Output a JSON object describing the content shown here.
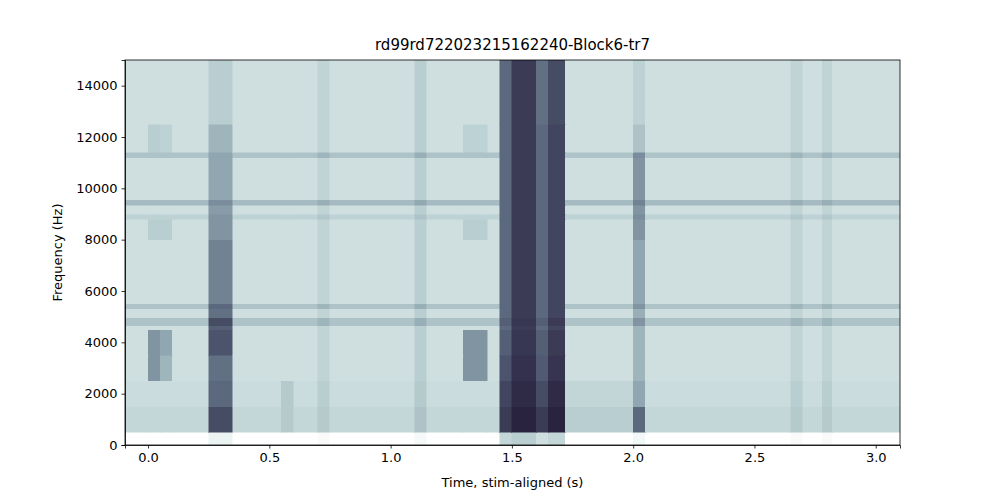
{
  "chart_data": {
    "type": "heatmap",
    "title": "rd99rd722023215162240-Block6-tr7",
    "x_label": "Time, stim-aligned (s)",
    "y_label": "Frequency (Hz)",
    "xlim": [
      -0.095,
      3.1
    ],
    "ylim": [
      0,
      15000
    ],
    "xticks": [
      {
        "value": 0,
        "label": "0.0"
      },
      0.5,
      {
        "value": 1,
        "label": "1.0"
      },
      1.5,
      {
        "value": 2,
        "label": "2.0"
      },
      2.5,
      {
        "value": 3,
        "label": "3.0"
      }
    ],
    "yticks": [
      0,
      2000,
      4000,
      6000,
      8000,
      10000,
      12000,
      14000
    ],
    "x_edges": [
      -0.095,
      0.0,
      0.05,
      0.1,
      0.25,
      0.35,
      0.55,
      0.6,
      0.7,
      0.75,
      1.1,
      1.15,
      1.3,
      1.4,
      1.45,
      1.5,
      1.6,
      1.65,
      1.72,
      2.0,
      2.05,
      2.65,
      2.7,
      2.78,
      2.82,
      3.1
    ],
    "y_edges": [
      0,
      500,
      1500,
      2500,
      3500,
      4500,
      4650,
      4950,
      5300,
      5500,
      8000,
      8800,
      9000,
      9350,
      9550,
      11200,
      11400,
      12500,
      15000
    ],
    "cells": [
      [
        0.05,
        0.05,
        0.05,
        0.05,
        0.15,
        0.05,
        0.05,
        0.05,
        0.08,
        0.05,
        0.1,
        0.05,
        0.05,
        0.05,
        0.35,
        0.4,
        0.3,
        0.35,
        0.05,
        0.12,
        0.05,
        0.08,
        0.05,
        0.08,
        0.05
      ],
      [
        0.35,
        0.35,
        0.35,
        0.35,
        0.8,
        0.35,
        0.42,
        0.35,
        0.42,
        0.35,
        0.45,
        0.35,
        0.35,
        0.35,
        0.85,
        0.92,
        0.85,
        0.92,
        0.4,
        0.72,
        0.35,
        0.42,
        0.35,
        0.42,
        0.35
      ],
      [
        0.32,
        0.32,
        0.32,
        0.32,
        0.72,
        0.32,
        0.42,
        0.32,
        0.4,
        0.32,
        0.42,
        0.32,
        0.32,
        0.32,
        0.82,
        0.9,
        0.8,
        0.9,
        0.36,
        0.55,
        0.32,
        0.4,
        0.32,
        0.4,
        0.32
      ],
      [
        0.3,
        0.6,
        0.5,
        0.3,
        0.7,
        0.3,
        0.3,
        0.3,
        0.37,
        0.3,
        0.4,
        0.3,
        0.6,
        0.3,
        0.78,
        0.88,
        0.76,
        0.87,
        0.3,
        0.5,
        0.3,
        0.37,
        0.3,
        0.37,
        0.3
      ],
      [
        0.3,
        0.6,
        0.55,
        0.3,
        0.78,
        0.3,
        0.3,
        0.3,
        0.37,
        0.3,
        0.4,
        0.3,
        0.6,
        0.3,
        0.75,
        0.86,
        0.75,
        0.85,
        0.3,
        0.5,
        0.3,
        0.37,
        0.3,
        0.37,
        0.3
      ],
      [
        0.3,
        0.3,
        0.3,
        0.3,
        0.75,
        0.3,
        0.3,
        0.3,
        0.37,
        0.3,
        0.4,
        0.3,
        0.3,
        0.3,
        0.72,
        0.85,
        0.72,
        0.82,
        0.3,
        0.5,
        0.3,
        0.37,
        0.3,
        0.37,
        0.3
      ],
      [
        0.45,
        0.45,
        0.45,
        0.45,
        0.8,
        0.45,
        0.45,
        0.45,
        0.5,
        0.45,
        0.52,
        0.45,
        0.45,
        0.45,
        0.75,
        0.86,
        0.75,
        0.85,
        0.45,
        0.6,
        0.45,
        0.5,
        0.45,
        0.5,
        0.45
      ],
      [
        0.3,
        0.3,
        0.3,
        0.3,
        0.7,
        0.3,
        0.3,
        0.3,
        0.37,
        0.3,
        0.4,
        0.3,
        0.3,
        0.3,
        0.72,
        0.85,
        0.72,
        0.82,
        0.3,
        0.52,
        0.3,
        0.37,
        0.3,
        0.37,
        0.3
      ],
      [
        0.45,
        0.45,
        0.45,
        0.45,
        0.72,
        0.45,
        0.45,
        0.45,
        0.5,
        0.45,
        0.52,
        0.45,
        0.45,
        0.45,
        0.72,
        0.85,
        0.72,
        0.82,
        0.45,
        0.6,
        0.45,
        0.5,
        0.45,
        0.5,
        0.45
      ],
      [
        0.3,
        0.3,
        0.3,
        0.3,
        0.65,
        0.3,
        0.3,
        0.3,
        0.37,
        0.3,
        0.4,
        0.3,
        0.3,
        0.3,
        0.72,
        0.85,
        0.72,
        0.82,
        0.3,
        0.55,
        0.3,
        0.37,
        0.3,
        0.37,
        0.3
      ],
      [
        0.3,
        0.4,
        0.4,
        0.3,
        0.6,
        0.3,
        0.3,
        0.3,
        0.37,
        0.3,
        0.4,
        0.3,
        0.4,
        0.3,
        0.72,
        0.85,
        0.72,
        0.82,
        0.3,
        0.6,
        0.3,
        0.37,
        0.3,
        0.37,
        0.3
      ],
      [
        0.38,
        0.38,
        0.38,
        0.38,
        0.6,
        0.38,
        0.38,
        0.38,
        0.43,
        0.38,
        0.45,
        0.38,
        0.38,
        0.38,
        0.72,
        0.85,
        0.72,
        0.82,
        0.38,
        0.62,
        0.38,
        0.43,
        0.38,
        0.43,
        0.38
      ],
      [
        0.3,
        0.3,
        0.3,
        0.3,
        0.58,
        0.3,
        0.3,
        0.3,
        0.37,
        0.3,
        0.4,
        0.3,
        0.3,
        0.3,
        0.72,
        0.85,
        0.72,
        0.82,
        0.3,
        0.6,
        0.3,
        0.37,
        0.3,
        0.37,
        0.3
      ],
      [
        0.48,
        0.48,
        0.48,
        0.48,
        0.62,
        0.48,
        0.48,
        0.48,
        0.52,
        0.48,
        0.54,
        0.48,
        0.48,
        0.48,
        0.72,
        0.85,
        0.72,
        0.82,
        0.48,
        0.65,
        0.48,
        0.52,
        0.48,
        0.52,
        0.48
      ],
      [
        0.3,
        0.3,
        0.3,
        0.3,
        0.55,
        0.3,
        0.3,
        0.3,
        0.37,
        0.3,
        0.4,
        0.3,
        0.3,
        0.3,
        0.72,
        0.85,
        0.72,
        0.82,
        0.3,
        0.6,
        0.3,
        0.37,
        0.3,
        0.37,
        0.3
      ],
      [
        0.45,
        0.45,
        0.45,
        0.45,
        0.55,
        0.45,
        0.45,
        0.45,
        0.5,
        0.45,
        0.52,
        0.45,
        0.45,
        0.45,
        0.72,
        0.85,
        0.72,
        0.82,
        0.45,
        0.62,
        0.45,
        0.5,
        0.45,
        0.5,
        0.45
      ],
      [
        0.3,
        0.4,
        0.38,
        0.3,
        0.5,
        0.3,
        0.3,
        0.3,
        0.37,
        0.3,
        0.4,
        0.3,
        0.38,
        0.3,
        0.72,
        0.85,
        0.72,
        0.82,
        0.3,
        0.45,
        0.3,
        0.37,
        0.3,
        0.37,
        0.3
      ],
      [
        0.3,
        0.3,
        0.3,
        0.3,
        0.4,
        0.3,
        0.3,
        0.3,
        0.37,
        0.3,
        0.4,
        0.3,
        0.3,
        0.3,
        0.72,
        0.85,
        0.7,
        0.8,
        0.3,
        0.38,
        0.3,
        0.37,
        0.3,
        0.37,
        0.3
      ]
    ]
  }
}
